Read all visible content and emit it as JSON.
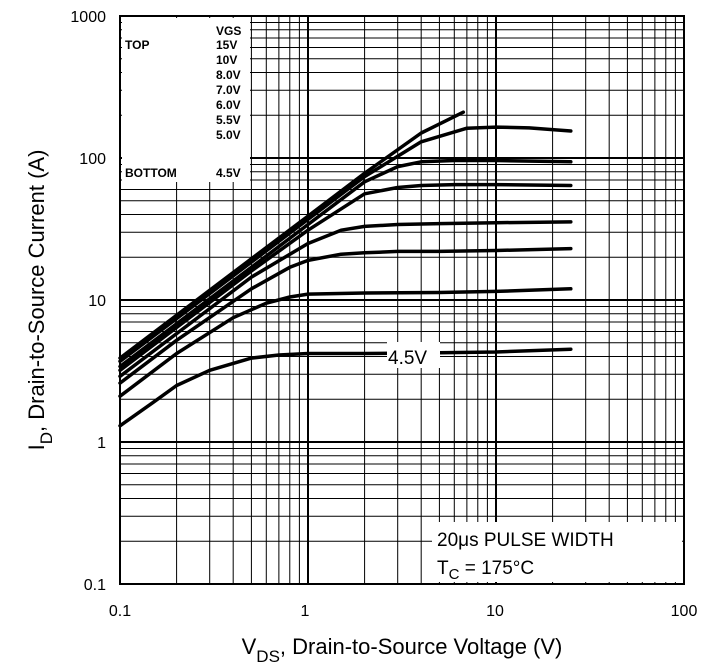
{
  "chart_data": {
    "type": "line",
    "x_scale": "log",
    "y_scale": "log",
    "xlim": [
      0.1,
      100
    ],
    "ylim": [
      0.1,
      1000
    ],
    "grid": true,
    "x_ticks": [
      "0.1",
      "1",
      "10",
      "100"
    ],
    "y_ticks": [
      "0.1",
      "1",
      "10",
      "100",
      "1000"
    ],
    "xlabel": {
      "main": "V",
      "sub": "DS",
      "rest": ", Drain-to-Source Voltage (V)"
    },
    "ylabel": {
      "main": "I",
      "sub": "D",
      "rest": ", Drain-to-Source Current (A)"
    },
    "legend": {
      "header": "VGS",
      "top_label": "TOP",
      "bottom_label": "BOTTOM",
      "entries": [
        "15V",
        "10V",
        "8.0V",
        "7.0V",
        "6.0V",
        "5.5V",
        "5.0V",
        "4.5V"
      ]
    },
    "annotations": {
      "curve_label": "4.5V",
      "pulse_width": "20μs PULSE WIDTH",
      "tc_main": "T",
      "tc_sub": "C",
      "tc_rest": " = 175°C"
    },
    "series": [
      {
        "name": "15V",
        "x": [
          0.1,
          0.2,
          0.5,
          1,
          2,
          4,
          6.7
        ],
        "y": [
          3.9,
          7.8,
          19.5,
          39,
          78,
          150,
          210
        ]
      },
      {
        "name": "10V",
        "x": [
          0.1,
          0.2,
          0.5,
          1,
          2,
          4,
          7,
          10,
          15,
          25
        ],
        "y": [
          3.7,
          7.4,
          18.5,
          37,
          74,
          130,
          162,
          165,
          163,
          155
        ]
      },
      {
        "name": "8.0V",
        "x": [
          0.1,
          0.2,
          0.5,
          1,
          2,
          3,
          4,
          6,
          10,
          25
        ],
        "y": [
          3.4,
          6.8,
          17,
          34,
          68,
          87,
          94,
          96,
          96,
          94
        ]
      },
      {
        "name": "7.0V",
        "x": [
          0.1,
          0.2,
          0.5,
          1,
          2,
          3,
          4,
          6,
          10,
          25
        ],
        "y": [
          3.2,
          6.4,
          16,
          31,
          56,
          62,
          64,
          65,
          65,
          64
        ]
      },
      {
        "name": "6.0V",
        "x": [
          0.1,
          0.2,
          0.5,
          1,
          1.5,
          2,
          3,
          5,
          10,
          25
        ],
        "y": [
          2.9,
          5.8,
          14.5,
          25,
          31,
          33,
          34,
          34.5,
          35,
          35.5
        ]
      },
      {
        "name": "5.5V",
        "x": [
          0.1,
          0.2,
          0.5,
          0.8,
          1,
          1.5,
          2,
          3,
          5,
          10,
          25
        ],
        "y": [
          2.6,
          5.2,
          12,
          17,
          19,
          21,
          21.5,
          22,
          22,
          22.3,
          23
        ]
      },
      {
        "name": "5.0V",
        "x": [
          0.1,
          0.2,
          0.4,
          0.6,
          0.8,
          1,
          2,
          5,
          10,
          25
        ],
        "y": [
          2.1,
          4.2,
          7.5,
          9.5,
          10.5,
          11,
          11.2,
          11.3,
          11.5,
          12
        ]
      },
      {
        "name": "4.5V",
        "x": [
          0.1,
          0.15,
          0.2,
          0.3,
          0.5,
          0.7,
          1,
          2,
          5,
          10,
          25
        ],
        "y": [
          1.3,
          1.9,
          2.5,
          3.2,
          3.9,
          4.1,
          4.2,
          4.2,
          4.25,
          4.3,
          4.5
        ]
      }
    ]
  }
}
